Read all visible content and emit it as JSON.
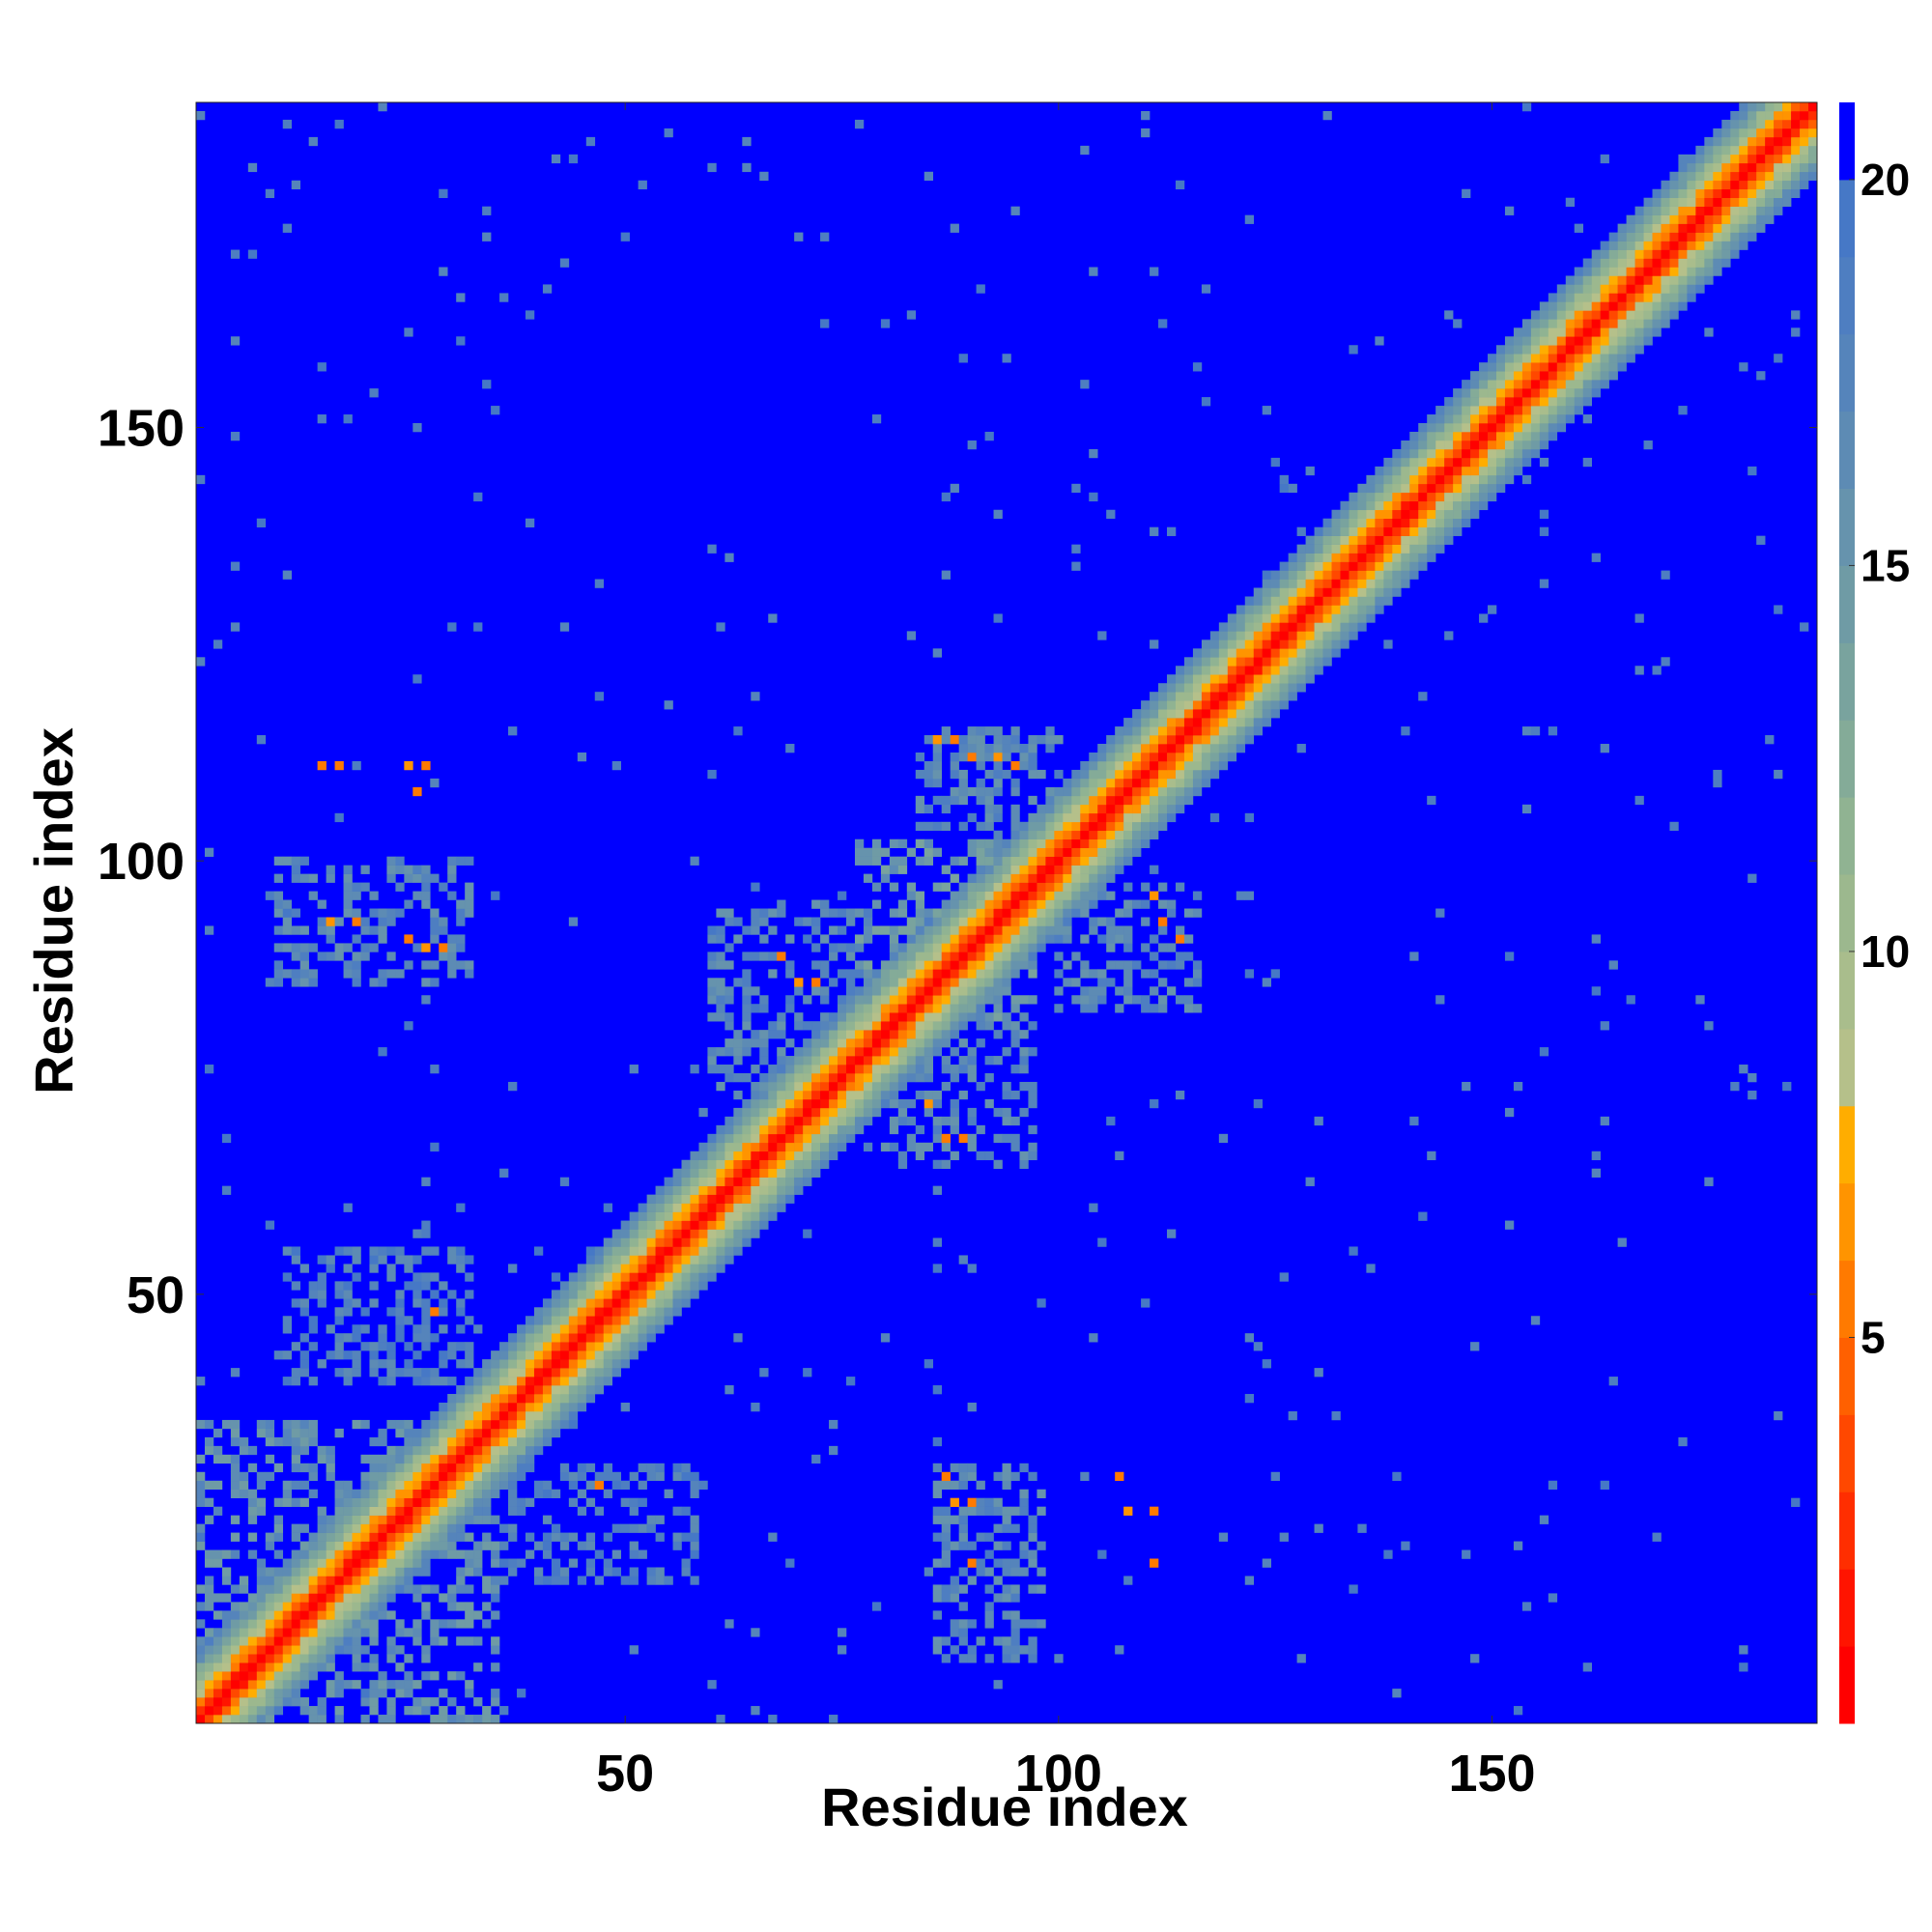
{
  "chart_data": {
    "type": "heatmap",
    "title": "",
    "xlabel": "Residue index",
    "ylabel": "Residue index",
    "xlim": [
      1,
      187
    ],
    "ylim": [
      1,
      187
    ],
    "x_ticks": [
      50,
      100,
      150
    ],
    "y_ticks": [
      50,
      100,
      150
    ],
    "colorbar": {
      "ticks": [
        5,
        10,
        15,
        20
      ],
      "range": [
        0,
        21
      ],
      "levels": [
        {
          "max": 1,
          "color": "#ff0000"
        },
        {
          "max": 2,
          "color": "#ff1400"
        },
        {
          "max": 3,
          "color": "#ff2e00"
        },
        {
          "max": 4,
          "color": "#ff4800"
        },
        {
          "max": 5,
          "color": "#ff6000"
        },
        {
          "max": 6,
          "color": "#ff7a00"
        },
        {
          "max": 7,
          "color": "#ff9400"
        },
        {
          "max": 8,
          "color": "#ffad00"
        },
        {
          "max": 9,
          "color": "#b5c08a"
        },
        {
          "max": 10,
          "color": "#a9bd8c"
        },
        {
          "max": 11,
          "color": "#9cb88e"
        },
        {
          "max": 12,
          "color": "#90b392"
        },
        {
          "max": 13,
          "color": "#84ab98"
        },
        {
          "max": 14,
          "color": "#79a39e"
        },
        {
          "max": 15,
          "color": "#6f9ba5"
        },
        {
          "max": 16,
          "color": "#6693ad"
        },
        {
          "max": 17,
          "color": "#5d8bb4"
        },
        {
          "max": 18,
          "color": "#5584bb"
        },
        {
          "max": 19,
          "color": "#4e7ec1"
        },
        {
          "max": 20,
          "color": "#4678c6"
        },
        {
          "max": 21,
          "color": "#0000ff"
        }
      ]
    },
    "diagonal_profile": [
      {
        "offset": 0,
        "value": 0.5
      },
      {
        "offset": 1,
        "value": 2.5
      },
      {
        "offset": 2,
        "value": 5.5
      },
      {
        "offset": 3,
        "value": 7.5
      },
      {
        "offset": 4,
        "value": 9.5
      },
      {
        "offset": 5,
        "value": 11.5
      },
      {
        "offset": 6,
        "value": 13.5
      },
      {
        "offset": 7,
        "value": 15.5
      },
      {
        "offset": 8,
        "value": 17.5
      }
    ],
    "contact_regions": [
      {
        "x": [
          1,
          35
        ],
        "y": [
          1,
          35
        ],
        "value": 16
      },
      {
        "x": [
          77,
          97
        ],
        "y": [
          82,
          102
        ],
        "value": 15
      },
      {
        "x": [
          10,
          32
        ],
        "y": [
          86,
          100
        ],
        "value": 17
      },
      {
        "x": [
          86,
          98
        ],
        "y": [
          8,
          30
        ],
        "value": 17
      },
      {
        "x": [
          84,
          100
        ],
        "y": [
          104,
          115
        ],
        "value": 17
      },
      {
        "x": [
          100,
          116
        ],
        "y": [
          83,
          97
        ],
        "value": 17
      },
      {
        "x": [
          60,
          78
        ],
        "y": [
          73,
          95
        ],
        "value": 17
      },
      {
        "x": [
          80,
          97
        ],
        "y": [
          65,
          82
        ],
        "value": 17
      },
      {
        "x": [
          11,
          32
        ],
        "y": [
          40,
          55
        ],
        "value": 18
      },
      {
        "x": [
          36,
          58
        ],
        "y": [
          17,
          30
        ],
        "value": 18
      }
    ],
    "close_contacts": [
      {
        "x": 15,
        "y": 111,
        "value": 6
      },
      {
        "x": 17,
        "y": 111,
        "value": 6
      },
      {
        "x": 25,
        "y": 111,
        "value": 7
      },
      {
        "x": 27,
        "y": 111,
        "value": 6
      },
      {
        "x": 26,
        "y": 108,
        "value": 6
      },
      {
        "x": 16,
        "y": 93,
        "value": 7
      },
      {
        "x": 19,
        "y": 93,
        "value": 6
      },
      {
        "x": 25,
        "y": 91,
        "value": 6
      },
      {
        "x": 27,
        "y": 90,
        "value": 7
      },
      {
        "x": 29,
        "y": 90,
        "value": 6
      },
      {
        "x": 28,
        "y": 48,
        "value": 6
      },
      {
        "x": 47,
        "y": 28,
        "value": 6
      },
      {
        "x": 86,
        "y": 114,
        "value": 7
      },
      {
        "x": 88,
        "y": 114,
        "value": 6
      },
      {
        "x": 90,
        "y": 112,
        "value": 6
      },
      {
        "x": 93,
        "y": 112,
        "value": 7
      },
      {
        "x": 95,
        "y": 111,
        "value": 6
      },
      {
        "x": 68,
        "y": 89,
        "value": 6
      },
      {
        "x": 70,
        "y": 86,
        "value": 7
      },
      {
        "x": 72,
        "y": 86,
        "value": 6
      },
      {
        "x": 111,
        "y": 96,
        "value": 7
      },
      {
        "x": 112,
        "y": 93,
        "value": 6
      },
      {
        "x": 114,
        "y": 91,
        "value": 6
      },
      {
        "x": 85,
        "y": 72,
        "value": 7
      },
      {
        "x": 87,
        "y": 68,
        "value": 6
      },
      {
        "x": 89,
        "y": 68,
        "value": 6
      },
      {
        "x": 87,
        "y": 29,
        "value": 6
      },
      {
        "x": 88,
        "y": 26,
        "value": 7
      },
      {
        "x": 90,
        "y": 26,
        "value": 6
      },
      {
        "x": 90,
        "y": 19,
        "value": 6
      },
      {
        "x": 107,
        "y": 29,
        "value": 6
      },
      {
        "x": 108,
        "y": 25,
        "value": 7
      },
      {
        "x": 111,
        "y": 25,
        "value": 6
      },
      {
        "x": 111,
        "y": 19,
        "value": 6
      }
    ]
  }
}
